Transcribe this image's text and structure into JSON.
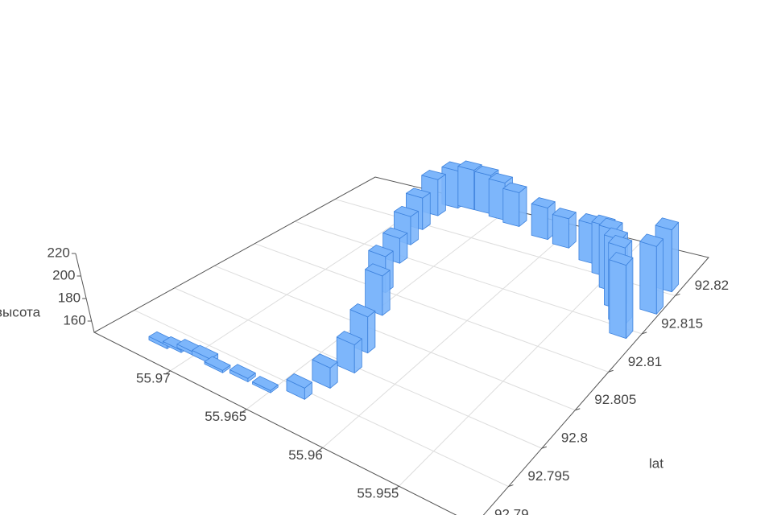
{
  "chart_data": {
    "type": "bar3d",
    "ylabel": "lat",
    "zlabel": "высота",
    "x": [
      55.972,
      55.97125,
      55.9705,
      55.9695,
      55.9685,
      55.967,
      55.9655,
      55.96375,
      55.96325,
      55.963,
      55.9635,
      55.965,
      55.96625,
      55.9675,
      55.96825,
      55.96875,
      55.969,
      55.9685,
      55.9675,
      55.96625,
      55.965,
      55.96375,
      55.96125,
      55.9595,
      55.957,
      55.9555,
      55.95425,
      55.953,
      55.952,
      55.95125,
      55.95075,
      55.951
    ],
    "y": [
      92.7928,
      92.79315,
      92.7935,
      92.7935,
      92.79315,
      92.7935,
      92.7935,
      92.79455,
      92.797,
      92.7998,
      92.8026,
      92.8075,
      92.8103,
      92.8145,
      92.8173,
      92.81975,
      92.8222,
      92.82395,
      92.8243,
      92.8243,
      92.82395,
      92.8236,
      92.8229,
      92.82255,
      92.8215,
      92.82045,
      92.81905,
      92.8173,
      92.8159,
      92.8145,
      92.818,
      92.8208
    ],
    "z": [
      153,
      152,
      153,
      154,
      152,
      153,
      152,
      160,
      168,
      175,
      182,
      185,
      182,
      172,
      175,
      178,
      182,
      183,
      185,
      184,
      183,
      180,
      178,
      176,
      185,
      195,
      205,
      212,
      218,
      215,
      210,
      205
    ],
    "color": "#7db6fb",
    "xlim": [
      55.95,
      55.975
    ],
    "ylim": [
      92.79,
      92.825
    ],
    "zlim": [
      150,
      220
    ],
    "xticks": [
      55.955,
      55.96,
      55.965,
      55.97
    ],
    "yticks": [
      92.79,
      92.795,
      92.8,
      92.805,
      92.81,
      92.815,
      92.82
    ],
    "zticks": [
      160,
      180,
      200,
      220
    ],
    "grid": true
  }
}
